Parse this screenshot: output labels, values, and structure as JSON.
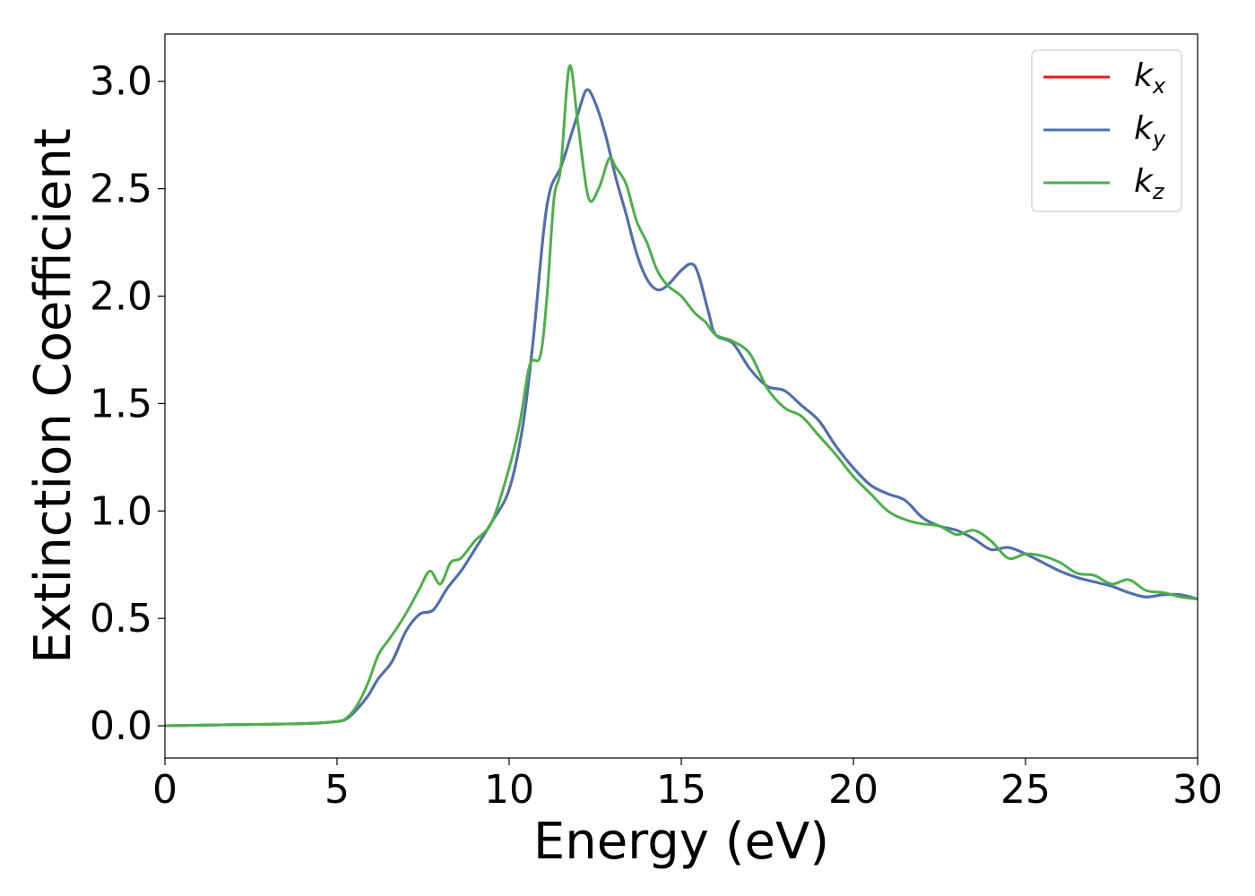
{
  "chart_data": {
    "type": "line",
    "title": "",
    "xlabel": "Energy (eV)",
    "ylabel": "Extinction Coefficient",
    "xlim": [
      0,
      30
    ],
    "ylim": [
      -0.15,
      3.22
    ],
    "xticks": [
      0,
      5,
      10,
      15,
      20,
      25,
      30
    ],
    "xtick_labels": [
      "0",
      "5",
      "10",
      "15",
      "20",
      "25",
      "30"
    ],
    "yticks": [
      0.0,
      0.5,
      1.0,
      1.5,
      2.0,
      2.5,
      3.0
    ],
    "ytick_labels": [
      "0.0",
      "0.5",
      "1.0",
      "1.5",
      "2.0",
      "2.5",
      "3.0"
    ],
    "grid": false,
    "legend_position": "top-right",
    "series": [
      {
        "name": "k",
        "name_sub": "x",
        "color": "#e41a1c",
        "x": [
          0,
          2,
          4,
          5,
          5.3,
          5.6,
          5.9,
          6.2,
          6.6,
          7,
          7.4,
          7.8,
          8.2,
          8.6,
          9,
          9.5,
          10,
          10.4,
          10.7,
          11,
          11.2,
          11.5,
          11.8,
          12,
          12.25,
          12.5,
          12.8,
          13.1,
          13.4,
          13.7,
          14,
          14.3,
          14.6,
          15,
          15.3,
          15.5,
          15.8,
          16,
          16.5,
          17,
          17.5,
          18,
          18.5,
          19,
          19.5,
          20,
          20.5,
          21,
          21.5,
          22,
          22.5,
          23,
          23.5,
          24,
          24.5,
          25,
          25.5,
          26,
          26.5,
          27,
          27.5,
          28,
          28.5,
          29,
          29.5,
          30
        ],
        "y": [
          0.0,
          0.005,
          0.01,
          0.02,
          0.035,
          0.08,
          0.14,
          0.22,
          0.3,
          0.44,
          0.52,
          0.54,
          0.64,
          0.72,
          0.82,
          0.95,
          1.1,
          1.4,
          1.8,
          2.3,
          2.5,
          2.6,
          2.75,
          2.85,
          2.96,
          2.9,
          2.75,
          2.55,
          2.38,
          2.2,
          2.08,
          2.03,
          2.05,
          2.12,
          2.15,
          2.1,
          1.92,
          1.82,
          1.78,
          1.66,
          1.58,
          1.56,
          1.49,
          1.42,
          1.3,
          1.2,
          1.12,
          1.08,
          1.05,
          0.97,
          0.93,
          0.91,
          0.87,
          0.82,
          0.83,
          0.8,
          0.76,
          0.72,
          0.69,
          0.67,
          0.65,
          0.62,
          0.6,
          0.61,
          0.61,
          0.59
        ]
      },
      {
        "name": "k",
        "name_sub": "y",
        "color": "#4a72b0",
        "x": [
          0,
          2,
          4,
          5,
          5.3,
          5.6,
          5.9,
          6.2,
          6.6,
          7,
          7.4,
          7.8,
          8.2,
          8.6,
          9,
          9.5,
          10,
          10.4,
          10.7,
          11,
          11.2,
          11.5,
          11.8,
          12,
          12.25,
          12.5,
          12.8,
          13.1,
          13.4,
          13.7,
          14,
          14.3,
          14.6,
          15,
          15.3,
          15.5,
          15.8,
          16,
          16.5,
          17,
          17.5,
          18,
          18.5,
          19,
          19.5,
          20,
          20.5,
          21,
          21.5,
          22,
          22.5,
          23,
          23.5,
          24,
          24.5,
          25,
          25.5,
          26,
          26.5,
          27,
          27.5,
          28,
          28.5,
          29,
          29.5,
          30
        ],
        "y": [
          0.0,
          0.005,
          0.01,
          0.02,
          0.035,
          0.08,
          0.14,
          0.22,
          0.3,
          0.44,
          0.52,
          0.54,
          0.64,
          0.72,
          0.82,
          0.95,
          1.1,
          1.4,
          1.8,
          2.3,
          2.5,
          2.6,
          2.75,
          2.85,
          2.96,
          2.9,
          2.75,
          2.55,
          2.38,
          2.2,
          2.08,
          2.03,
          2.05,
          2.12,
          2.15,
          2.1,
          1.92,
          1.82,
          1.78,
          1.66,
          1.58,
          1.56,
          1.49,
          1.42,
          1.3,
          1.2,
          1.12,
          1.08,
          1.05,
          0.97,
          0.93,
          0.91,
          0.87,
          0.82,
          0.83,
          0.8,
          0.76,
          0.72,
          0.69,
          0.67,
          0.65,
          0.62,
          0.6,
          0.61,
          0.61,
          0.59
        ]
      },
      {
        "name": "k",
        "name_sub": "z",
        "color": "#4daf4a",
        "x": [
          0,
          2,
          4,
          5,
          5.3,
          5.6,
          5.9,
          6.2,
          6.5,
          6.8,
          7.1,
          7.4,
          7.7,
          8,
          8.3,
          8.6,
          9,
          9.5,
          10,
          10.3,
          10.6,
          10.9,
          11.1,
          11.3,
          11.5,
          11.75,
          12,
          12.3,
          12.6,
          12.9,
          13.1,
          13.4,
          13.7,
          14,
          14.3,
          14.6,
          15,
          15.4,
          15.7,
          16,
          16.5,
          17,
          17.5,
          18,
          18.5,
          19,
          19.5,
          20,
          20.5,
          21,
          21.5,
          22,
          22.5,
          23,
          23.5,
          24,
          24.5,
          25,
          25.5,
          26,
          26.5,
          27,
          27.5,
          28,
          28.5,
          29,
          29.5,
          30
        ],
        "y": [
          0.0,
          0.005,
          0.01,
          0.02,
          0.04,
          0.1,
          0.2,
          0.33,
          0.4,
          0.47,
          0.55,
          0.64,
          0.72,
          0.66,
          0.76,
          0.78,
          0.86,
          0.95,
          1.2,
          1.4,
          1.68,
          1.72,
          2.0,
          2.45,
          2.6,
          3.07,
          2.8,
          2.46,
          2.5,
          2.64,
          2.6,
          2.52,
          2.35,
          2.25,
          2.12,
          2.05,
          2.0,
          1.92,
          1.88,
          1.82,
          1.79,
          1.73,
          1.57,
          1.48,
          1.44,
          1.35,
          1.26,
          1.16,
          1.08,
          1.0,
          0.96,
          0.94,
          0.93,
          0.89,
          0.91,
          0.86,
          0.78,
          0.8,
          0.79,
          0.76,
          0.71,
          0.7,
          0.66,
          0.68,
          0.63,
          0.62,
          0.6,
          0.59
        ]
      }
    ]
  }
}
